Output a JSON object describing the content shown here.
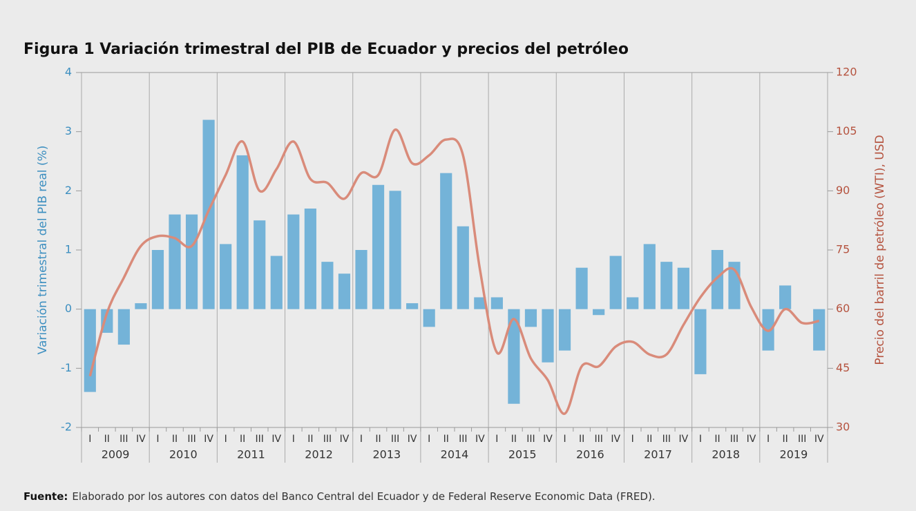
{
  "chart_data": {
    "type": "bar_line",
    "title": "Figura 1 Variación trimestral del PIB de Ecuador y precios del petróleo",
    "ylabel": "Variación trimestral del PIB real (%)",
    "y2label": "Precio del barril de petróleo (WTI), USD",
    "categories": [
      "I",
      "II",
      "III",
      "IV",
      "I",
      "II",
      "III",
      "IV",
      "I",
      "II",
      "III",
      "IV",
      "I",
      "II",
      "III",
      "IV",
      "I",
      "II",
      "III",
      "IV",
      "I",
      "II",
      "III",
      "IV",
      "I",
      "II",
      "III",
      "IV",
      "I",
      "II",
      "III",
      "IV",
      "I",
      "II",
      "III",
      "IV",
      "I",
      "II",
      "III",
      "IV",
      "I",
      "II",
      "III",
      "IV"
    ],
    "years": [
      "2009",
      "2010",
      "2011",
      "2012",
      "2013",
      "2014",
      "2015",
      "2016",
      "2017",
      "2018",
      "2019"
    ],
    "series": [
      {
        "name": "PIB",
        "type": "bar",
        "color": "#74b3d8",
        "values": [
          -1.4,
          -0.4,
          -0.6,
          0.1,
          1.0,
          1.6,
          1.6,
          3.2,
          1.1,
          2.6,
          1.5,
          0.9,
          1.6,
          1.7,
          0.8,
          0.6,
          1.0,
          2.1,
          2.0,
          0.1,
          -0.3,
          2.3,
          1.4,
          0.2,
          0.2,
          -1.6,
          -0.3,
          -0.9,
          -0.7,
          0.7,
          -0.1,
          0.9,
          0.2,
          1.1,
          0.8,
          0.7,
          -1.1,
          1.0,
          0.8,
          0.0,
          -0.7,
          0.4,
          0.0,
          -0.7
        ]
      },
      {
        "name": "WTI",
        "type": "line",
        "axis": "y2",
        "color": "#d98b7a",
        "values": [
          43,
          59,
          68,
          76,
          78.5,
          78,
          76,
          85,
          94,
          102.5,
          90,
          95.5,
          102.5,
          93,
          92,
          88,
          94.5,
          94,
          105.5,
          97,
          99,
          103,
          99,
          70,
          49,
          57.5,
          47.5,
          42,
          33.5,
          45.5,
          45.5,
          50.5,
          51.7,
          48.5,
          48.5,
          56,
          63,
          68,
          70,
          60.5,
          54.5,
          60,
          56.5,
          57
        ]
      }
    ],
    "ylim": [
      -2,
      4
    ],
    "yticks": [
      -2,
      -1,
      0,
      1,
      2,
      3,
      4
    ],
    "y2lim": [
      30,
      120
    ],
    "y2ticks": [
      30,
      45,
      60,
      75,
      90,
      105,
      120
    ],
    "source_label": "Fuente:",
    "source": "Elaborado por los autores con datos del Banco Central del Ecuador y de Federal Reserve Economic Data (FRED)."
  }
}
